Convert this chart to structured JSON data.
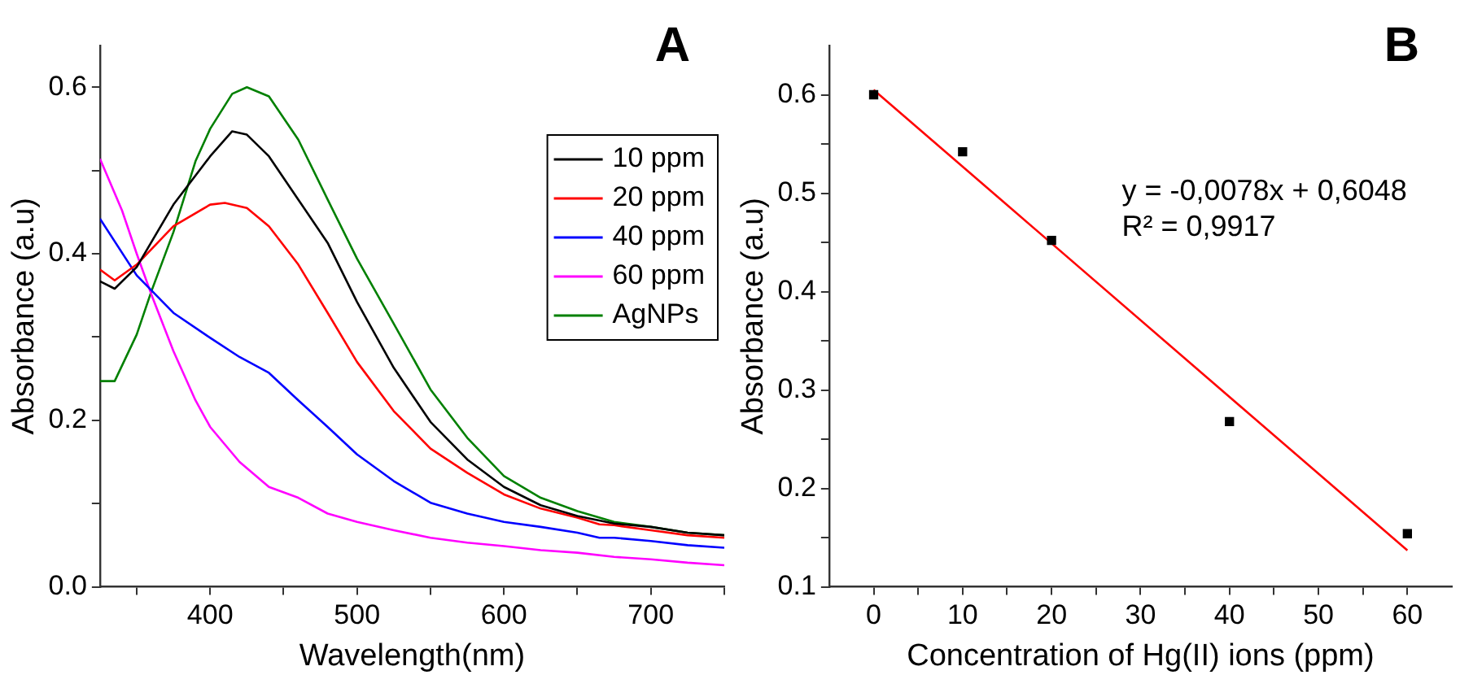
{
  "chart_data": [
    {
      "type": "line",
      "title": "A",
      "xlabel": "Wavelength(nm)",
      "ylabel": "Absorbance (a.u)",
      "xlim": [
        325,
        750
      ],
      "ylim": [
        0,
        0.65
      ],
      "xticks": [
        {
          "value": 350,
          "label": null
        },
        400,
        {
          "value": 450,
          "label": null
        },
        500,
        {
          "value": 550,
          "label": null
        },
        600,
        {
          "value": 650,
          "label": null
        },
        700,
        {
          "value": 750,
          "label": null
        }
      ],
      "yticks": [
        {
          "value": 0,
          "label": "0.0"
        },
        {
          "value": 0.1,
          "label": null
        },
        0.2,
        {
          "value": 0.3,
          "label": null
        },
        0.4,
        {
          "value": 0.5,
          "label": null
        },
        0.6
      ],
      "grid": false,
      "legend": "top right",
      "marker": "none",
      "line_style": "solid",
      "series": [
        {
          "name": "10 ppm",
          "color": "#000000",
          "x": [
            325,
            335,
            350,
            375,
            400,
            415,
            425,
            440,
            460,
            480,
            500,
            525,
            550,
            575,
            600,
            625,
            650,
            675,
            700,
            725,
            750
          ],
          "values": [
            0.367,
            0.358,
            0.384,
            0.459,
            0.517,
            0.547,
            0.543,
            0.517,
            0.465,
            0.413,
            0.342,
            0.263,
            0.198,
            0.153,
            0.12,
            0.098,
            0.085,
            0.076,
            0.072,
            0.065,
            0.062
          ]
        },
        {
          "name": "20 ppm",
          "color": "#ff0000",
          "x": [
            325,
            335,
            350,
            375,
            400,
            410,
            425,
            440,
            460,
            480,
            500,
            525,
            550,
            575,
            600,
            625,
            650,
            665,
            675,
            700,
            725,
            750
          ],
          "values": [
            0.381,
            0.368,
            0.387,
            0.433,
            0.459,
            0.461,
            0.455,
            0.433,
            0.387,
            0.329,
            0.27,
            0.211,
            0.166,
            0.137,
            0.111,
            0.094,
            0.083,
            0.075,
            0.074,
            0.068,
            0.062,
            0.059
          ]
        },
        {
          "name": "40 ppm",
          "color": "#0000ff",
          "x": [
            325,
            350,
            375,
            400,
            420,
            440,
            460,
            480,
            500,
            525,
            550,
            575,
            600,
            625,
            650,
            665,
            675,
            700,
            725,
            750
          ],
          "values": [
            0.442,
            0.374,
            0.329,
            0.299,
            0.276,
            0.257,
            0.224,
            0.192,
            0.159,
            0.127,
            0.101,
            0.088,
            0.078,
            0.072,
            0.065,
            0.059,
            0.059,
            0.055,
            0.05,
            0.047
          ]
        },
        {
          "name": "60 ppm",
          "color": "#ff00ff",
          "x": [
            325,
            340,
            350,
            360,
            375,
            390,
            400,
            420,
            440,
            460,
            480,
            500,
            525,
            550,
            575,
            600,
            625,
            650,
            675,
            700,
            725,
            750
          ],
          "values": [
            0.514,
            0.452,
            0.4,
            0.351,
            0.283,
            0.224,
            0.192,
            0.15,
            0.12,
            0.107,
            0.088,
            0.078,
            0.068,
            0.059,
            0.053,
            0.049,
            0.044,
            0.041,
            0.036,
            0.033,
            0.029,
            0.026
          ]
        },
        {
          "name": "AgNPs",
          "color": "#008000",
          "x": [
            325,
            335,
            350,
            360,
            375,
            390,
            400,
            415,
            425,
            440,
            460,
            480,
            500,
            525,
            550,
            575,
            600,
            625,
            650,
            675,
            700,
            725,
            750
          ],
          "values": [
            0.247,
            0.247,
            0.303,
            0.355,
            0.426,
            0.511,
            0.55,
            0.592,
            0.6,
            0.589,
            0.537,
            0.465,
            0.394,
            0.316,
            0.237,
            0.179,
            0.133,
            0.107,
            0.091,
            0.078,
            0.072,
            0.065,
            0.062
          ]
        }
      ]
    },
    {
      "type": "scatter",
      "title": "B",
      "xlabel": "Concentration of Hg(II) ions (ppm)",
      "ylabel": "Absorbance (a.u)",
      "xlim": [
        -5,
        65
      ],
      "ylim": [
        0.1,
        0.65
      ],
      "xticks": [
        0,
        {
          "value": 5,
          "label": null
        },
        10,
        {
          "value": 15,
          "label": null
        },
        20,
        {
          "value": 25,
          "label": null
        },
        30,
        {
          "value": 35,
          "label": null
        },
        40,
        {
          "value": 45,
          "label": null
        },
        50,
        {
          "value": 55,
          "label": null
        },
        60
      ],
      "yticks": [
        0.1,
        {
          "value": 0.15,
          "label": null
        },
        0.2,
        {
          "value": 0.25,
          "label": null
        },
        0.3,
        {
          "value": 0.35,
          "label": null
        },
        0.4,
        {
          "value": 0.45,
          "label": null
        },
        0.5,
        {
          "value": 0.55,
          "label": null
        },
        0.6
      ],
      "grid": false,
      "marker": "square",
      "annotations": [
        "y = -0,0078x + 0,6048",
        "R² = 0,9917"
      ],
      "series": [
        {
          "color": "#000000",
          "x": [
            0,
            10,
            20,
            40,
            60
          ],
          "values": [
            0.6,
            0.542,
            0.452,
            0.268,
            0.154
          ]
        },
        {
          "type": "line",
          "marker": "none",
          "color": "#ff0000",
          "x": [
            0,
            60
          ],
          "values": [
            0.605,
            0.137
          ]
        }
      ]
    }
  ]
}
